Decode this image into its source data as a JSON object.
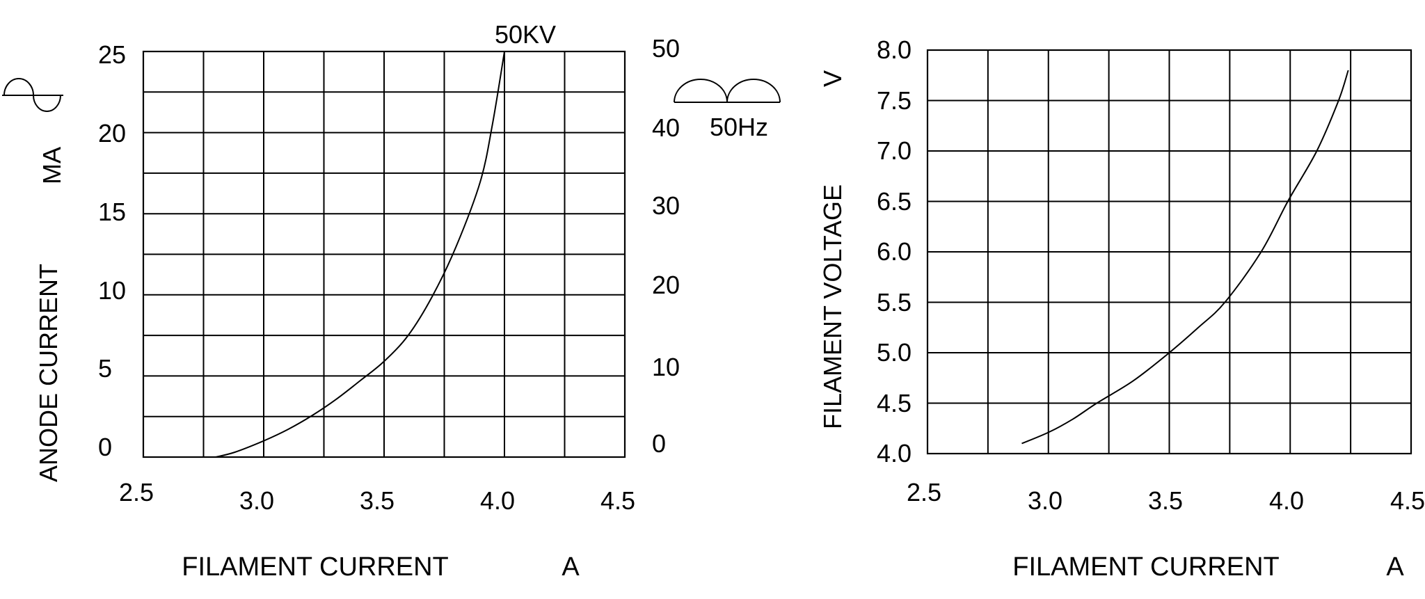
{
  "colors": {
    "background": "#ffffff",
    "ink": "#000000"
  },
  "icons": {
    "top_left": "ac-sine-wave-icon",
    "right_of_first_chart": "full-wave-rectified-icon"
  },
  "chart_data": [
    {
      "type": "line",
      "annotation": "50KV",
      "grid": "on",
      "x_axis": {
        "label": "FILAMENT CURRENT",
        "unit": "A",
        "min": 2.5,
        "max": 4.5,
        "gridline_step": 0.25,
        "ticks": [
          "2.5",
          "3.0",
          "3.5",
          "4.0",
          "4.5"
        ]
      },
      "y_axis_left": {
        "unit": "MA",
        "label": "ANODE CURRENT",
        "min": 0,
        "max": 25,
        "gridline_step": 2.5,
        "ticks": [
          "25",
          "20",
          "15",
          "10",
          "5",
          "0"
        ]
      },
      "y_axis_right": {
        "min": 0,
        "max": 50,
        "tick_step": 10,
        "ticks": [
          "50",
          "40",
          "30",
          "20",
          "10",
          "0"
        ],
        "waveform_label": "50Hz"
      },
      "series": [
        {
          "name": "anode current vs filament current at 50KV",
          "points": [
            [
              2.8,
              0.0
            ],
            [
              2.88,
              0.3
            ],
            [
              3.0,
              1.0
            ],
            [
              3.1,
              1.7
            ],
            [
              3.2,
              2.55
            ],
            [
              3.3,
              3.55
            ],
            [
              3.4,
              4.7
            ],
            [
              3.5,
              5.9
            ],
            [
              3.6,
              7.5
            ],
            [
              3.7,
              9.9
            ],
            [
              3.8,
              13.0
            ],
            [
              3.9,
              17.0
            ],
            [
              3.95,
              20.5
            ],
            [
              4.0,
              25.0
            ]
          ]
        }
      ]
    },
    {
      "type": "line",
      "grid": "on",
      "x_axis": {
        "label": "FILAMENT CURRENT",
        "unit": "A",
        "min": 2.5,
        "max": 4.5,
        "gridline_step": 0.25,
        "ticks": [
          "2.5",
          "3.0",
          "3.5",
          "4.0",
          "4.5"
        ]
      },
      "y_axis": {
        "unit": "V",
        "label": "FILAMENT VOLTAGE",
        "min": 4.0,
        "max": 8.0,
        "gridline_step": 0.5,
        "ticks": [
          "8.0",
          "7.5",
          "7.0",
          "6.5",
          "6.0",
          "5.5",
          "5.0",
          "4.5",
          "4.0"
        ]
      },
      "series": [
        {
          "name": "filament voltage vs filament current",
          "points": [
            [
              2.89,
              4.1
            ],
            [
              3.0,
              4.21
            ],
            [
              3.1,
              4.34
            ],
            [
              3.2,
              4.5
            ],
            [
              3.35,
              4.72
            ],
            [
              3.5,
              5.0
            ],
            [
              3.62,
              5.25
            ],
            [
              3.73,
              5.5
            ],
            [
              3.88,
              6.0
            ],
            [
              3.99,
              6.5
            ],
            [
              4.11,
              7.0
            ],
            [
              4.2,
              7.5
            ],
            [
              4.24,
              7.8
            ]
          ]
        }
      ]
    }
  ]
}
